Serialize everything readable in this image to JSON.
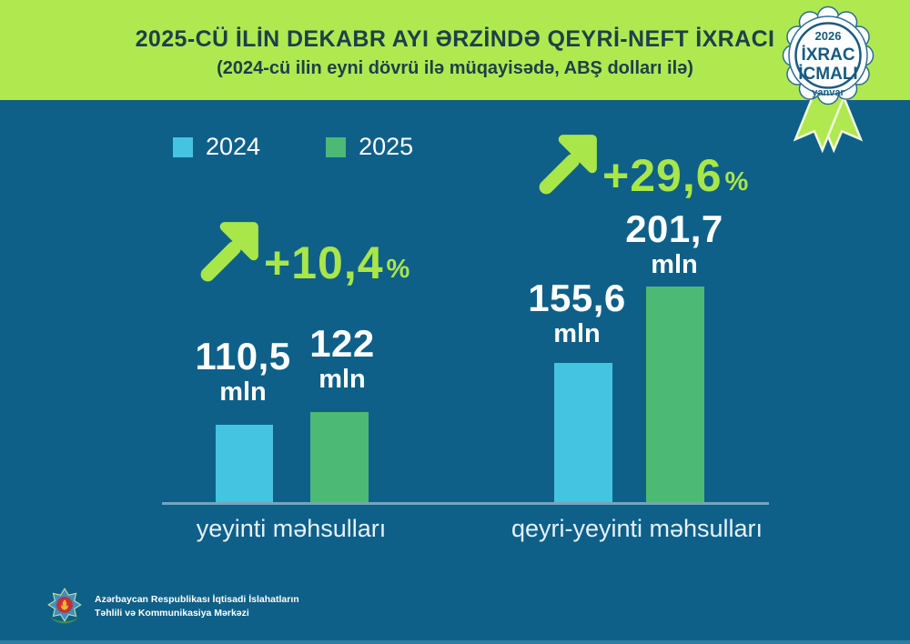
{
  "header": {
    "title": "2025-CÜ İLİN DEKABR AYI ƏRZİNDƏ QEYRİ-NEFT İXRACI",
    "subtitle": "(2024-cü ilin eyni dövrü ilə müqayisədə, ABŞ dolları ilə)"
  },
  "badge": {
    "year": "2026",
    "line1": "İXRAC",
    "line2": "İCMALI",
    "month": "yanvar"
  },
  "legend": [
    {
      "label": "2024",
      "color": "#45c4e1"
    },
    {
      "label": "2025",
      "color": "#4cb974"
    }
  ],
  "chart_data": {
    "type": "bar",
    "title": "2025-cü ilin dekabr ayı ərzində qeyri-neft ixracı",
    "categories": [
      "yeyinti məhsulları",
      "qeyri-yeyinti məhsulları"
    ],
    "series": [
      {
        "name": "2024",
        "values": [
          110.5,
          155.6
        ],
        "color": "#45c4e1"
      },
      {
        "name": "2025",
        "values": [
          122,
          201.7
        ],
        "color": "#4cb974"
      }
    ],
    "value_labels": [
      [
        "110,5",
        "122"
      ],
      [
        "155,6",
        "201,7"
      ]
    ],
    "unit": "mln",
    "growth": [
      {
        "value": 10.4,
        "label": "+10,4",
        "suffix": "%"
      },
      {
        "value": 29.6,
        "label": "+29,6",
        "suffix": "%"
      }
    ],
    "bar_pixel_heights": [
      [
        87,
        101
      ],
      [
        155,
        239
      ]
    ],
    "bar_geometry": [
      [
        {
          "left": 237,
          "width": 63
        },
        {
          "left": 341,
          "width": 64
        }
      ],
      [
        {
          "left": 609,
          "width": 64
        },
        {
          "left": 710,
          "width": 64
        }
      ]
    ],
    "legend_position": "top-left",
    "grid": false,
    "accent_color": "#a9e64a",
    "background_color": "#0e6089"
  },
  "footer": {
    "org_line1": "Azərbaycan Respublikası İqtisadi İslahatların",
    "org_line2": "Təhlili və Kommunikasiya Mərkəzi"
  }
}
